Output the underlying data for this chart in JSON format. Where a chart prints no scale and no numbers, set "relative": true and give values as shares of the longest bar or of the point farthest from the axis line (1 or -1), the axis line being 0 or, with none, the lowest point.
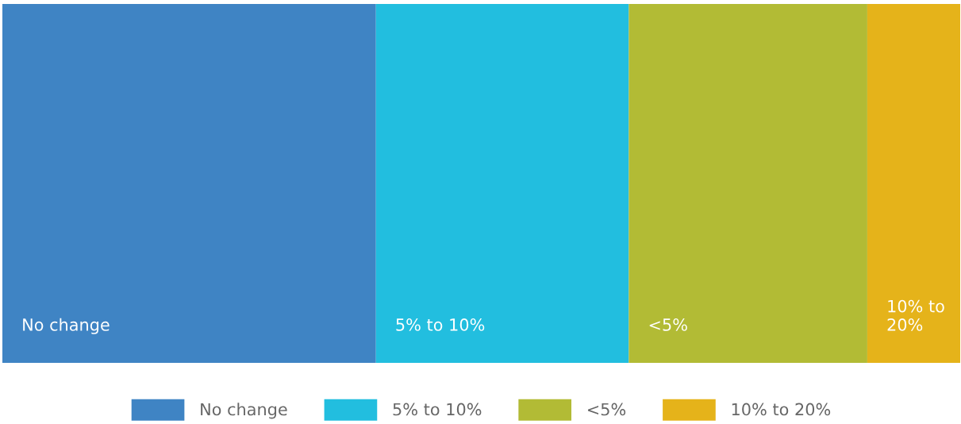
{
  "chart_data": {
    "type": "bar",
    "orientation": "horizontal",
    "stacked": true,
    "relative": true,
    "categories": [
      null
    ],
    "legend": "bottom",
    "series": [
      {
        "name": "No change",
        "color": "#3f84c4",
        "values": [
          0.39
        ]
      },
      {
        "name": "5% to 10%",
        "color": "#22bedf",
        "values": [
          0.264
        ]
      },
      {
        "name": "<5%",
        "color": "#b2bb35",
        "values": [
          0.249
        ]
      },
      {
        "name": "10% to 20%",
        "color": "#e5b31a",
        "values": [
          0.097
        ]
      }
    ]
  }
}
